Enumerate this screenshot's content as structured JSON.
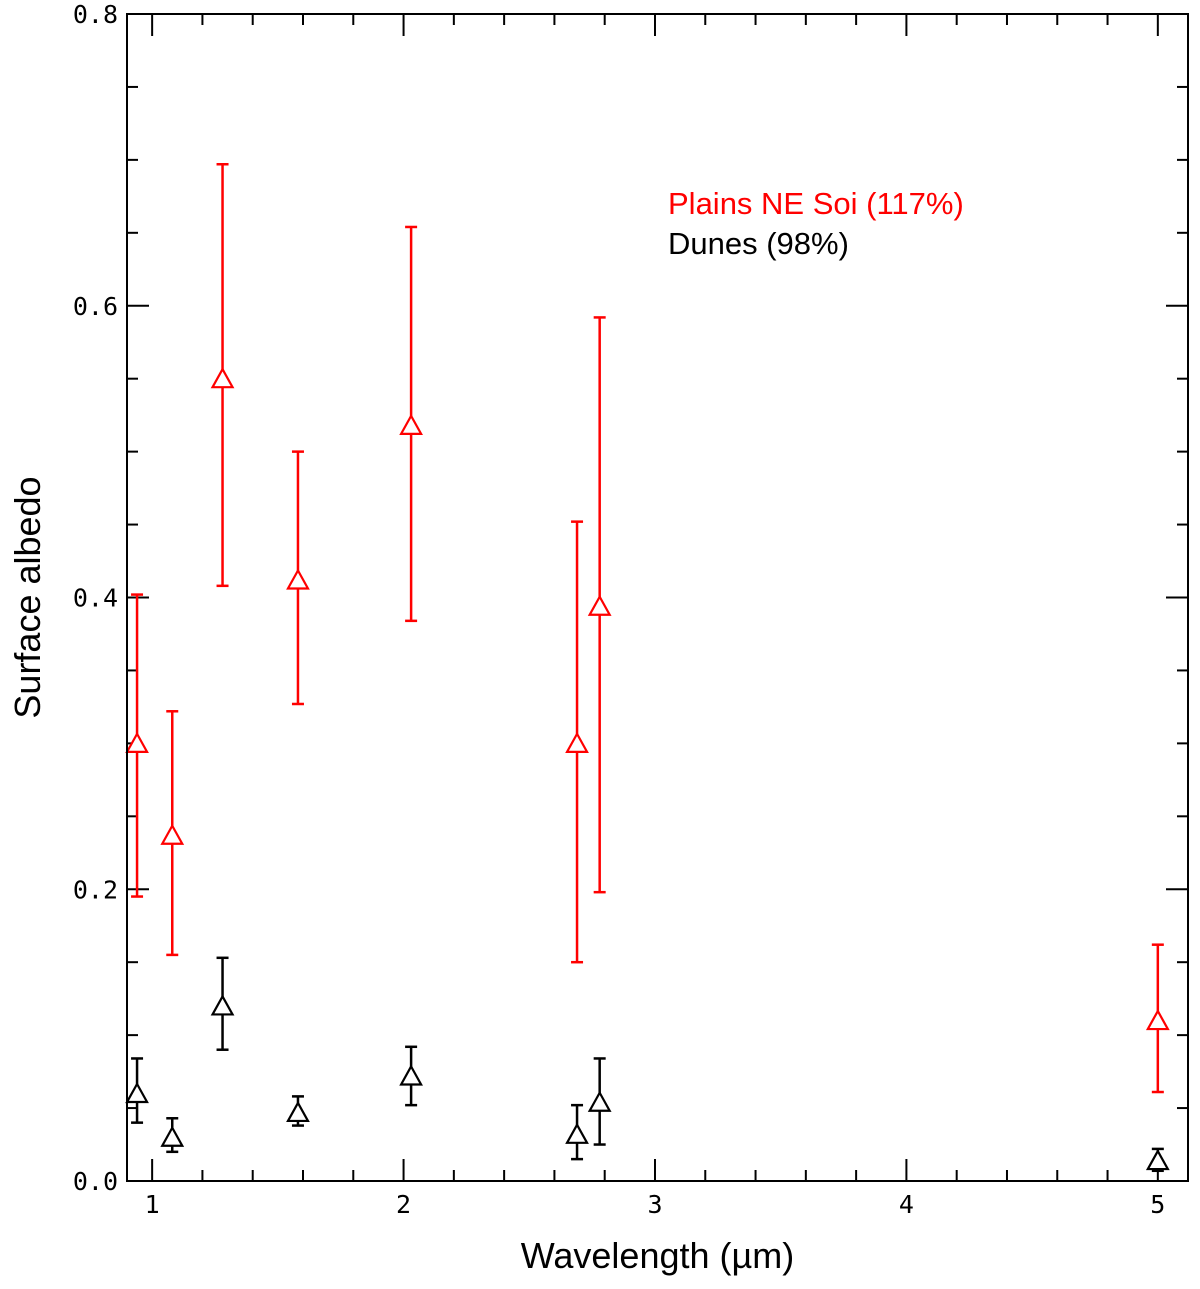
{
  "chart_data": {
    "type": "scatter",
    "xlabel": "Wavelength (µm)",
    "ylabel": "Surface albedo",
    "xlim": [
      0.9,
      5.12
    ],
    "ylim": [
      0.0,
      0.8
    ],
    "x_ticks": [
      1,
      2,
      3,
      4,
      5
    ],
    "x_tick_labels": [
      "1",
      "2",
      "3",
      "4",
      "5"
    ],
    "y_ticks": [
      0.0,
      0.2,
      0.4,
      0.6,
      0.8
    ],
    "y_tick_labels": [
      "0.0",
      "0.2",
      "0.4",
      "0.6",
      "0.8"
    ],
    "grid": false,
    "legend_position": "top-right",
    "marker": "open-triangle",
    "series": [
      {
        "name": "Plains NE Soi (117%)",
        "color": "#ff0000",
        "points": [
          {
            "x": 0.94,
            "y": 0.3,
            "low": 0.195,
            "high": 0.402
          },
          {
            "x": 1.08,
            "y": 0.237,
            "low": 0.155,
            "high": 0.322
          },
          {
            "x": 1.28,
            "y": 0.55,
            "low": 0.408,
            "high": 0.697
          },
          {
            "x": 1.58,
            "y": 0.412,
            "low": 0.327,
            "high": 0.5
          },
          {
            "x": 2.03,
            "y": 0.518,
            "low": 0.384,
            "high": 0.654
          },
          {
            "x": 2.69,
            "y": 0.3,
            "low": 0.15,
            "high": 0.452
          },
          {
            "x": 2.78,
            "y": 0.394,
            "low": 0.198,
            "high": 0.592
          },
          {
            "x": 5.0,
            "y": 0.11,
            "low": 0.061,
            "high": 0.162
          }
        ]
      },
      {
        "name": "Dunes (98%)",
        "color": "#000000",
        "points": [
          {
            "x": 0.94,
            "y": 0.06,
            "low": 0.04,
            "high": 0.084
          },
          {
            "x": 1.08,
            "y": 0.03,
            "low": 0.02,
            "high": 0.043
          },
          {
            "x": 1.28,
            "y": 0.12,
            "low": 0.09,
            "high": 0.153
          },
          {
            "x": 1.58,
            "y": 0.047,
            "low": 0.038,
            "high": 0.058
          },
          {
            "x": 2.03,
            "y": 0.072,
            "low": 0.052,
            "high": 0.092
          },
          {
            "x": 2.69,
            "y": 0.032,
            "low": 0.015,
            "high": 0.052
          },
          {
            "x": 2.78,
            "y": 0.054,
            "low": 0.025,
            "high": 0.084
          },
          {
            "x": 5.0,
            "y": 0.014,
            "low": 0.007,
            "high": 0.022
          }
        ]
      }
    ]
  }
}
